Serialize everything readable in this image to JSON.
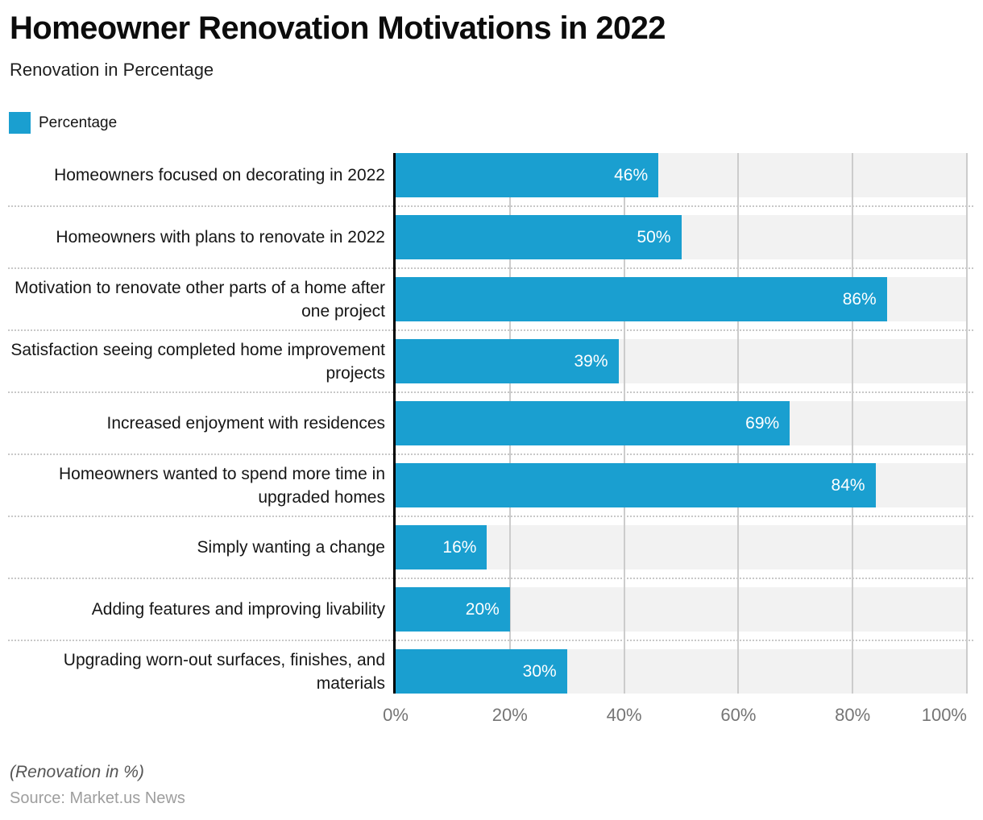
{
  "header": {
    "title": "Homeowner Renovation Motivations in 2022",
    "subtitle": "Renovation in Percentage",
    "legend": {
      "label": "Percentage"
    }
  },
  "chart_data": {
    "type": "bar",
    "orientation": "horizontal",
    "title": "Homeowner Renovation Motivations in 2022",
    "subtitle": "Renovation in Percentage",
    "unit": "%",
    "categories": [
      "Homeowners focused on decorating in 2022",
      "Homeowners with plans to renovate in 2022",
      "Motivation to renovate other parts of a home after one project",
      "Satisfaction seeing completed home improvement projects",
      "Increased enjoyment with residences",
      "Homeowners wanted to spend more time in upgraded homes",
      "Simply wanting a change",
      "Adding features and improving livability",
      "Upgrading worn-out surfaces, finishes, and materials"
    ],
    "series": [
      {
        "name": "Percentage",
        "values": [
          46,
          50,
          86,
          39,
          69,
          84,
          16,
          20,
          30
        ]
      }
    ],
    "xticks": [
      "0%",
      "20%",
      "40%",
      "60%",
      "80%",
      "100%"
    ],
    "xlim": [
      0,
      100
    ],
    "grid": true,
    "legend_position": "top-left",
    "colors": {
      "bar": "#1a9fd0",
      "row_background": "#f2f2f2",
      "gridline": "#cccccc",
      "axis_line": "#000000",
      "tick_label": "#757575",
      "value_label": "#ffffff"
    }
  },
  "footer": {
    "note": "(Renovation in %)",
    "source": "Source: Market.us News"
  }
}
